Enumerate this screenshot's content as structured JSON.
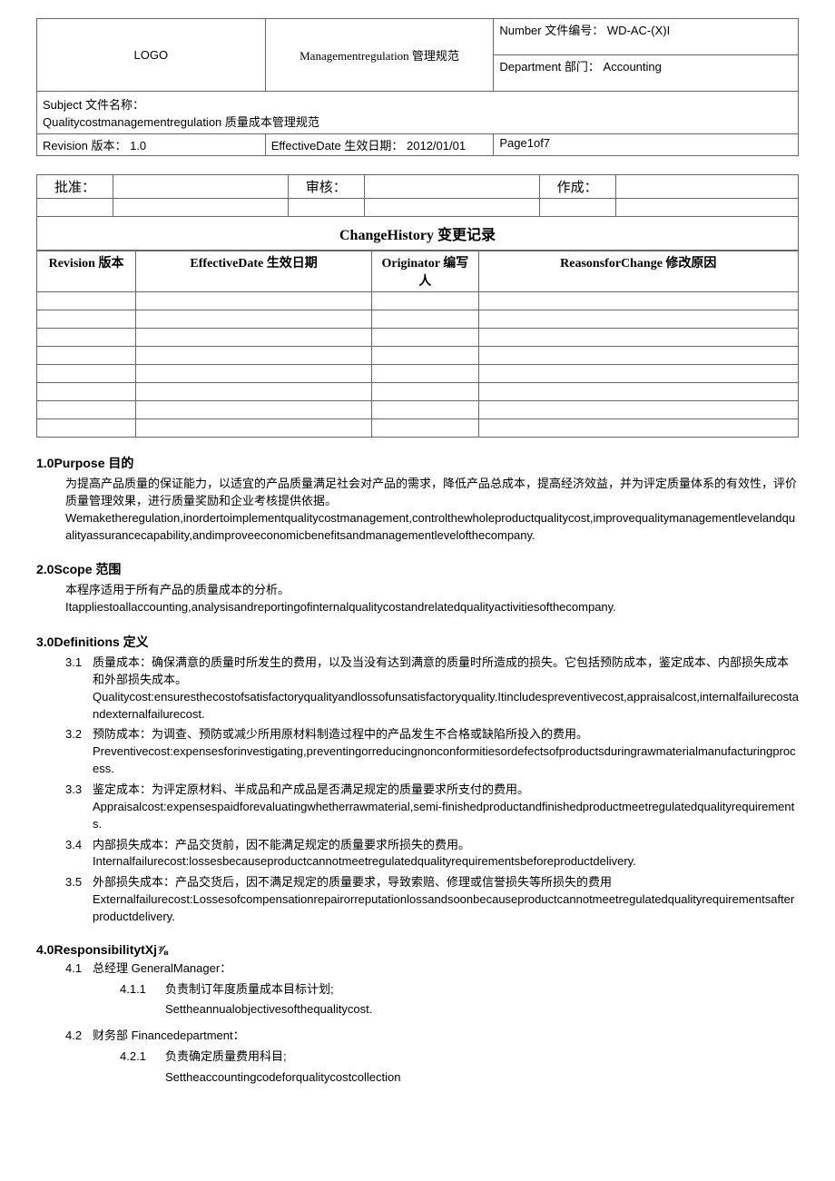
{
  "header": {
    "logo": "LOGO",
    "title": "Managementregulation 管理规范",
    "number_label": "Number 文件编号：",
    "number_value": "WD-AC-(X)I",
    "dept_label": "Department 部门：",
    "dept_value": "Accounting",
    "subject_label": "Subject 文件名称：",
    "subject_value": "Qualitycostmanagementregulation 质量成本管理规范",
    "revision_label": "Revision 版本：",
    "revision_value": "1.0",
    "effdate_label": "EffectiveDate 生效日期：",
    "effdate_value": "2012/01/01",
    "page": "Page1of7"
  },
  "approval": {
    "approve": "批准：",
    "review": "审核：",
    "prepare": "作成："
  },
  "change": {
    "title": "ChangeHistory 变更记录",
    "col_rev": "Revision 版本",
    "col_date": "EffectiveDate 生效日期",
    "col_orig": "Originator 编写人",
    "col_reason": "ReasonsforChange 修改原因",
    "rows": 8
  },
  "sections": {
    "purpose": {
      "heading": "1.0Purpose 目的",
      "cn": "为提高产品质量的保证能力，以适宜的产品质量满足社会对产品的需求，降低产品总成本，提高经济效益，并为评定质量体系的有效性，评价质量管理效果，进行质量奖励和企业考核提供依据。",
      "en": "Wemaketheregulation,inordertoimplementqualitycostmanagement,controlthewholeproductqualitycost,improvequalitymanagementlevelandqualityassurancecapability,andimproveeconomicbenefitsandmanagementlevelofthecompany."
    },
    "scope": {
      "heading": "2.0Scope 范围",
      "cn": "本程序适用于所有产品的质量成本的分析。",
      "en": "Itappliestoallaccounting,analysisandreportingofinternalqualitycostandrelatedqualityactivitiesofthecompany."
    },
    "defs": {
      "heading": "3.0Definitions 定义",
      "items": [
        {
          "num": "3.1",
          "cn": "质量成本：确保满意的质量时所发生的费用，以及当没有达到满意的质量时所造成的损失。它包括预防成本，鉴定成本、内部损失成本和外部损失成本。",
          "en": "Qualitycost:ensuresthecostofsatisfactoryqualityandlossofunsatisfactoryquality.Itincludespreventivecost,appraisalcost,internalfailurecostandexternalfailurecost."
        },
        {
          "num": "3.2",
          "cn": "预防成本：为调查、预防或减少所用原材料制造过程中的产品发生不合格或缺陷所投入的费用。",
          "en": "Preventivecost:expensesforinvestigating,preventingorreducingnonconformitiesordefectsofproductsduringrawmaterialmanufacturingprocess."
        },
        {
          "num": "3.3",
          "cn": "鉴定成本：为评定原材料、半成品和产成品是否满足规定的质量要求所支付的费用。",
          "en": "Appraisalcost:expensespaidforevaluatingwhetherrawmaterial,semi-finishedproductandfinishedproductmeetregulatedqualityrequirements."
        },
        {
          "num": "3.4",
          "cn": "内部损失成本：产品交货前，因不能满足规定的质量要求所损失的费用。",
          "en": "Internalfailurecost:lossesbecauseproductcannotmeetregulatedqualityrequirementsbeforeproductdelivery."
        },
        {
          "num": "3.5",
          "cn": "外部损失成本：产品交货后，因不满足规定的质量要求，导致索赔、修理或信誉损失等所损失的费用",
          "en": "Externalfailurecost:Lossesofcompensationrepairorreputationlossandsoonbecauseproductcannotmeetregulatedqualityrequirementsafterproductdelivery."
        }
      ]
    },
    "resp": {
      "heading": "4.0ResponsibilitytXj⅞",
      "r41_num": "4.1",
      "r41_title": "总经理 GeneralManager：",
      "r411_num": "4.1.1",
      "r411_cn": "负责制订年度质量成本目标计划;",
      "r411_en": "Settheannualobjectivesofthequalitycost.",
      "r42_num": "4.2",
      "r42_title": "财务部 Financedepartment：",
      "r421_num": "4.2.1",
      "r421_cn": "负责确定质量费用科目;",
      "r421_en": "Settheaccountingcodeforqualitycostcollection"
    }
  }
}
